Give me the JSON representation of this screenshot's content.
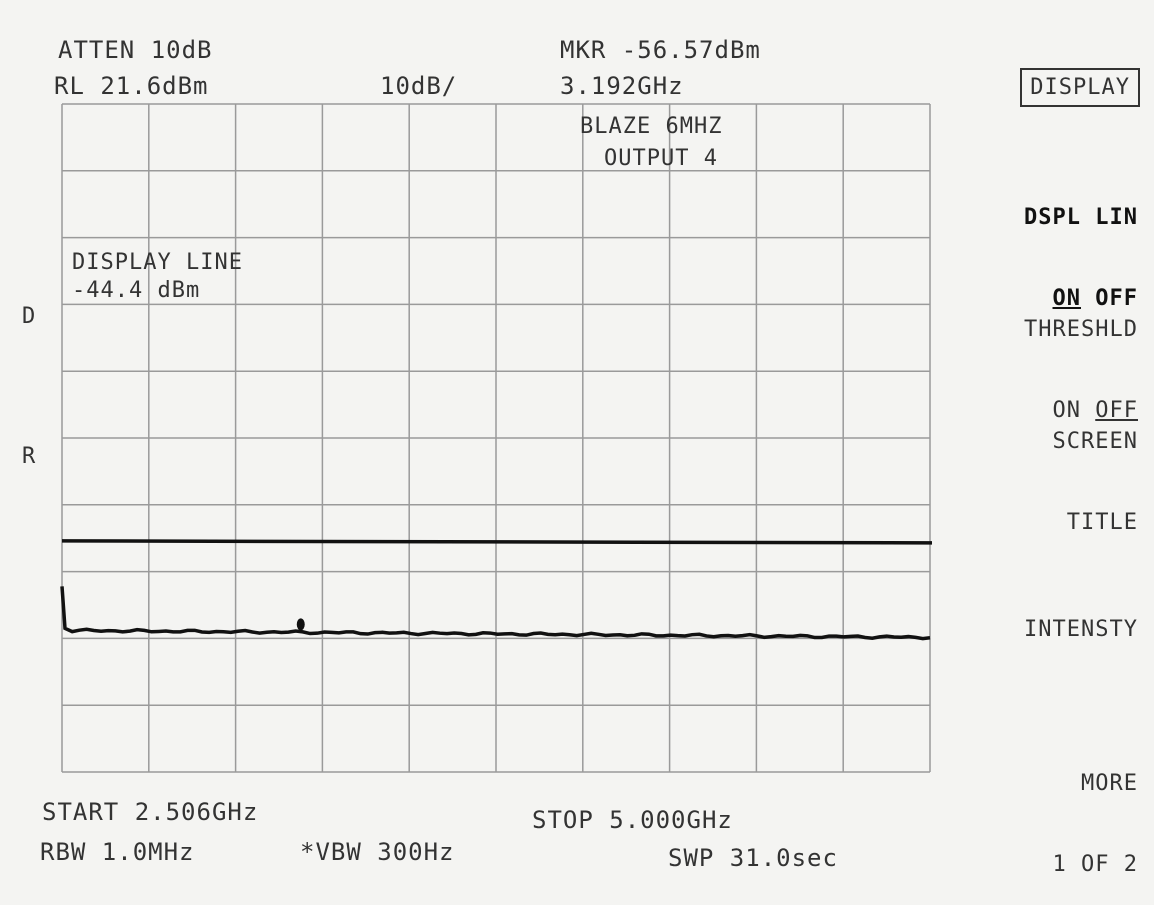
{
  "header": {
    "atten": "ATTEN 10dB",
    "ref_level": "RL 21.6dBm",
    "scale": "10dB/",
    "marker_amp": "MKR -56.57dBm",
    "marker_freq": "3.192GHz"
  },
  "screen": {
    "title_line1": "BLAZE 6MHZ",
    "title_line2": "OUTPUT 4",
    "display_line_label": "DISPLAY LINE",
    "display_line_value": "-44.4 dBm",
    "side_d": "D",
    "side_r": "R"
  },
  "trace": {
    "grid_divisions_x": 10,
    "grid_divisions_y": 10,
    "display_line_dbm": -44.4,
    "noise_floor_dbm": -56.6,
    "marker_freq_ghz": 3.192
  },
  "softkeys": {
    "menu_title": "DISPLAY",
    "dspl_lin_line1": "DSPL LIN",
    "dspl_lin_on": "ON",
    "dspl_lin_off": "OFF",
    "threshld_line1": "THRESHLD",
    "threshld_on": "ON",
    "threshld_off": "OFF",
    "screen_title_line1": "SCREEN",
    "screen_title_line2": "TITLE",
    "intensity": "INTENSTY",
    "more_line1": "MORE",
    "more_line2": "1 OF 2"
  },
  "footer": {
    "start": "START 2.506GHz",
    "stop": "STOP 5.000GHz",
    "rbw": "RBW 1.0MHz",
    "vbw": "*VBW 300Hz",
    "sweep": "SWP 31.0sec"
  }
}
